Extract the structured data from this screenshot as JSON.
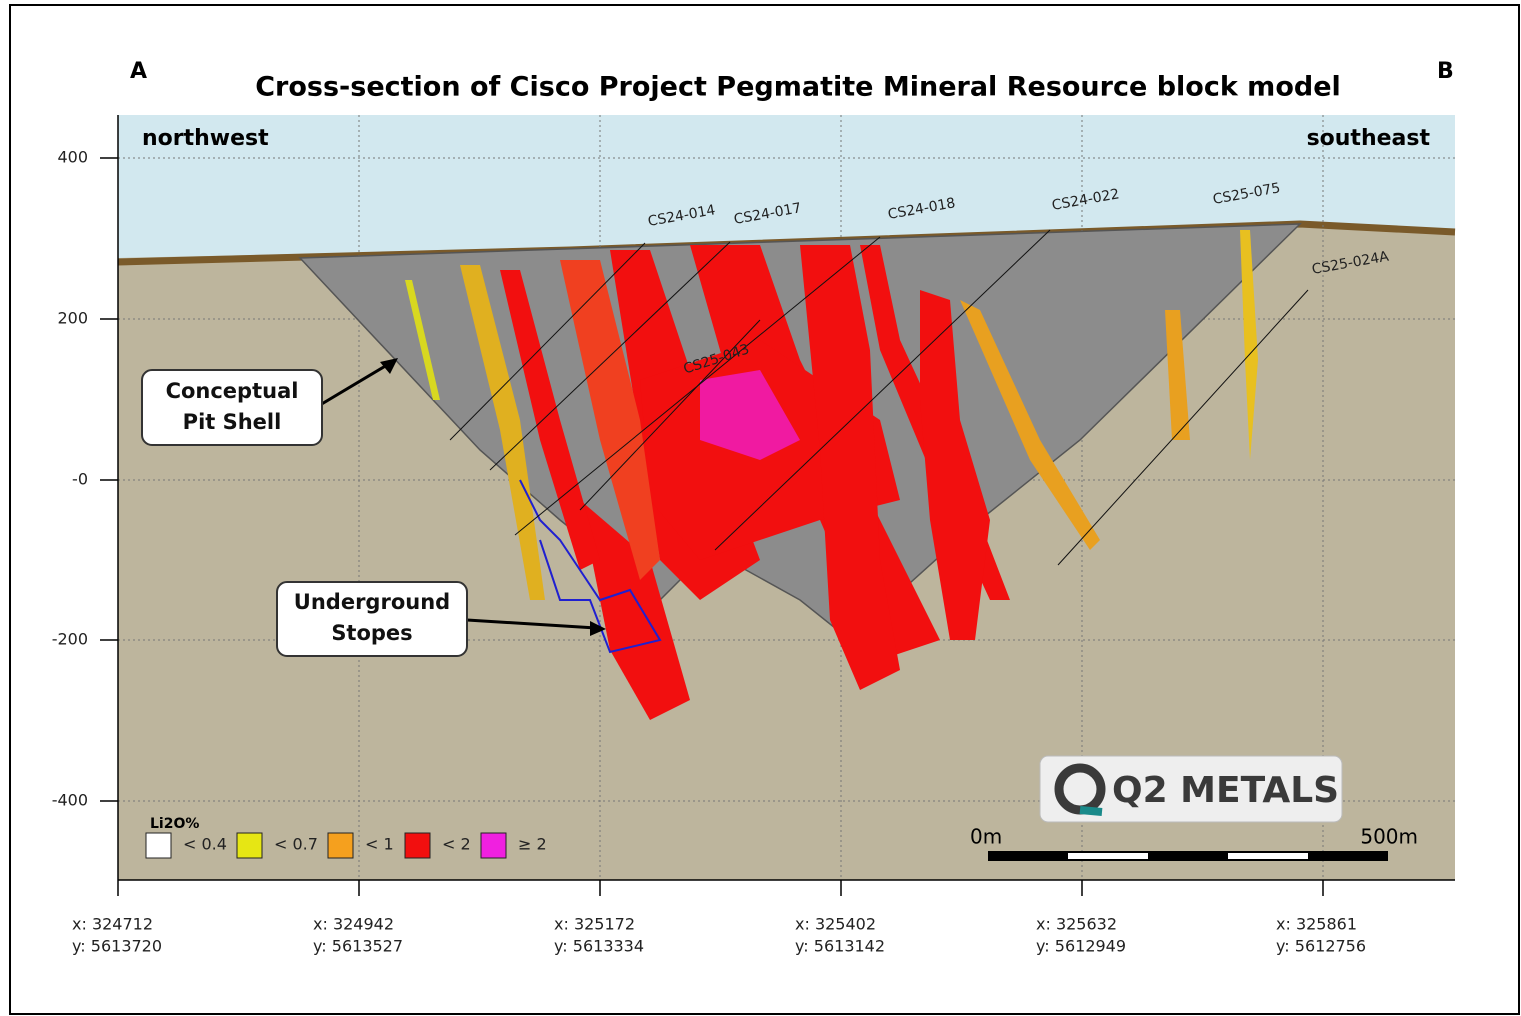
{
  "title": "Cross-section of Cisco Project Pegmatite Mineral Resource block model",
  "corner_labels": [
    "A",
    "B"
  ],
  "directions": [
    "northwest",
    "southeast"
  ],
  "y_axis": {
    "ticks": [
      "400",
      "200",
      "-0",
      "-200",
      "-400"
    ]
  },
  "x_axis": {
    "ticks": [
      {
        "x": "x: 324712",
        "y": "y: 5613720"
      },
      {
        "x": "x: 324942",
        "y": "y: 5613527"
      },
      {
        "x": "x: 325172",
        "y": "y: 5613334"
      },
      {
        "x": "x: 325402",
        "y": "y: 5613142"
      },
      {
        "x": "x: 325632",
        "y": "y: 5612949"
      },
      {
        "x": "x: 325861",
        "y": "y: 5612756"
      }
    ]
  },
  "drill_holes": [
    "CS24-014",
    "CS24-017",
    "CS24-018",
    "CS24-022",
    "CS25-075",
    "CS25-024A",
    "CS25-043"
  ],
  "callouts": [
    [
      "Conceptual",
      "Pit Shell"
    ],
    [
      "Underground",
      "Stopes"
    ]
  ],
  "legend": {
    "title": "Li2O%",
    "items": [
      "< 0.4",
      "< 0.7",
      "< 1",
      "< 2",
      "≥ 2"
    ]
  },
  "scale_bar": [
    "0m",
    "500m"
  ],
  "logo": "Q2 METALS"
}
